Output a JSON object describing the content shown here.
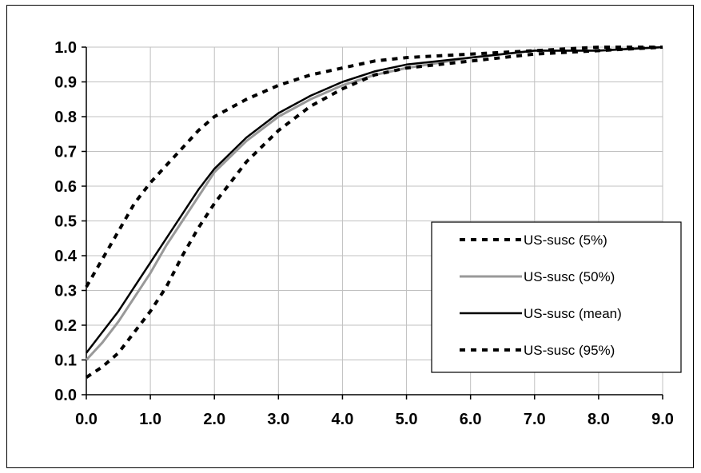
{
  "chart_data": {
    "type": "line",
    "title": "",
    "xlabel": "",
    "ylabel": "",
    "xlim": [
      0,
      9
    ],
    "ylim": [
      0,
      1
    ],
    "x_ticks": [
      "0.0",
      "1.0",
      "2.0",
      "3.0",
      "4.0",
      "5.0",
      "6.0",
      "7.0",
      "8.0",
      "9.0"
    ],
    "y_ticks": [
      "0.0",
      "0.1",
      "0.2",
      "0.3",
      "0.4",
      "0.5",
      "0.6",
      "0.7",
      "0.8",
      "0.9",
      "1.0"
    ],
    "grid": true,
    "legend_position": "right",
    "x": [
      0,
      0.25,
      0.5,
      0.75,
      1,
      1.25,
      1.5,
      1.75,
      2,
      2.5,
      3,
      3.5,
      4,
      4.5,
      5,
      6,
      7,
      8,
      9
    ],
    "series": [
      {
        "name": "US-susc (5%)",
        "color": "#000000",
        "style": "dotted",
        "values": [
          0.05,
          0.08,
          0.12,
          0.18,
          0.24,
          0.31,
          0.4,
          0.48,
          0.55,
          0.67,
          0.76,
          0.83,
          0.88,
          0.92,
          0.94,
          0.96,
          0.98,
          0.99,
          1.0
        ]
      },
      {
        "name": "US-susc (50%)",
        "color": "#999999",
        "style": "solid",
        "values": [
          0.1,
          0.15,
          0.21,
          0.28,
          0.35,
          0.43,
          0.5,
          0.57,
          0.64,
          0.73,
          0.8,
          0.85,
          0.89,
          0.92,
          0.94,
          0.97,
          0.99,
          0.99,
          1.0
        ]
      },
      {
        "name": "US-susc (mean)",
        "color": "#000000",
        "style": "solid",
        "values": [
          0.12,
          0.18,
          0.24,
          0.31,
          0.38,
          0.45,
          0.52,
          0.59,
          0.65,
          0.74,
          0.81,
          0.86,
          0.9,
          0.93,
          0.95,
          0.97,
          0.99,
          0.99,
          1.0
        ]
      },
      {
        "name": "US-susc (95%)",
        "color": "#000000",
        "style": "dotted",
        "values": [
          0.31,
          0.39,
          0.47,
          0.55,
          0.61,
          0.66,
          0.71,
          0.76,
          0.8,
          0.85,
          0.89,
          0.92,
          0.94,
          0.96,
          0.97,
          0.98,
          0.99,
          1.0,
          1.0
        ]
      }
    ]
  }
}
